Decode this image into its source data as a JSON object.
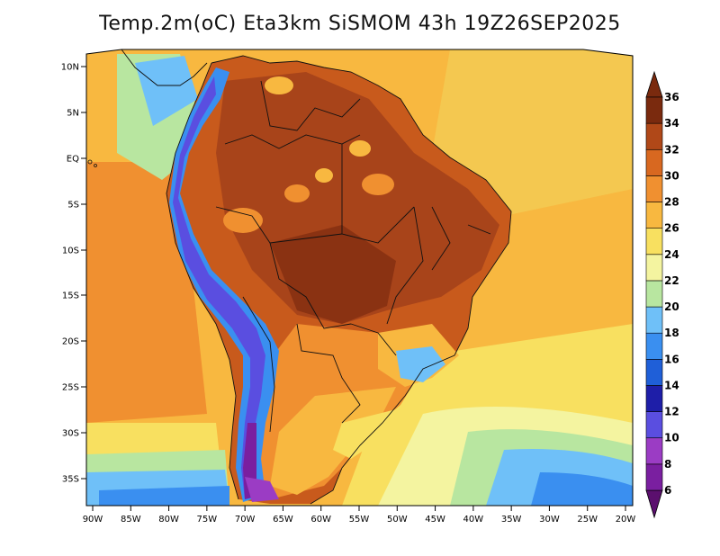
{
  "title": "Temp.2m(oC) Eta3km SiSMOM 43h 19Z26SEP2025",
  "map": {
    "lat_labels": [
      "10N",
      "5N",
      "EQ",
      "5S",
      "10S",
      "15S",
      "20S",
      "25S",
      "30S",
      "35S"
    ],
    "lon_labels": [
      "90W",
      "85W",
      "80W",
      "75W",
      "70W",
      "65W",
      "60W",
      "55W",
      "50W",
      "45W",
      "40W",
      "35W",
      "30W",
      "25W",
      "20W"
    ],
    "lat_values": [
      10,
      5,
      0,
      -5,
      -10,
      -15,
      -20,
      -25,
      -30,
      -35
    ],
    "lon_values": [
      -90,
      -85,
      -80,
      -75,
      -70,
      -65,
      -60,
      -55,
      -50,
      -45,
      -40,
      -35,
      -30,
      -25,
      -20
    ]
  },
  "colorbar": {
    "labels": [
      "6",
      "8",
      "10",
      "12",
      "14",
      "16",
      "18",
      "20",
      "22",
      "24",
      "26",
      "28",
      "30",
      "32",
      "34",
      "36"
    ],
    "bands": [
      {
        "color": "#5b0f6e"
      },
      {
        "color": "#7a1fa0"
      },
      {
        "color": "#9b3cc4"
      },
      {
        "color": "#5a4ee0"
      },
      {
        "color": "#1e1ea8"
      },
      {
        "color": "#1f5fd8"
      },
      {
        "color": "#3a8ff0"
      },
      {
        "color": "#6fc0f8"
      },
      {
        "color": "#b8e6a0"
      },
      {
        "color": "#f4f4a0"
      },
      {
        "color": "#f8e060"
      },
      {
        "color": "#f8b840"
      },
      {
        "color": "#f09030"
      },
      {
        "color": "#d86820"
      },
      {
        "color": "#b04818"
      },
      {
        "color": "#7a2a0e"
      }
    ]
  }
}
